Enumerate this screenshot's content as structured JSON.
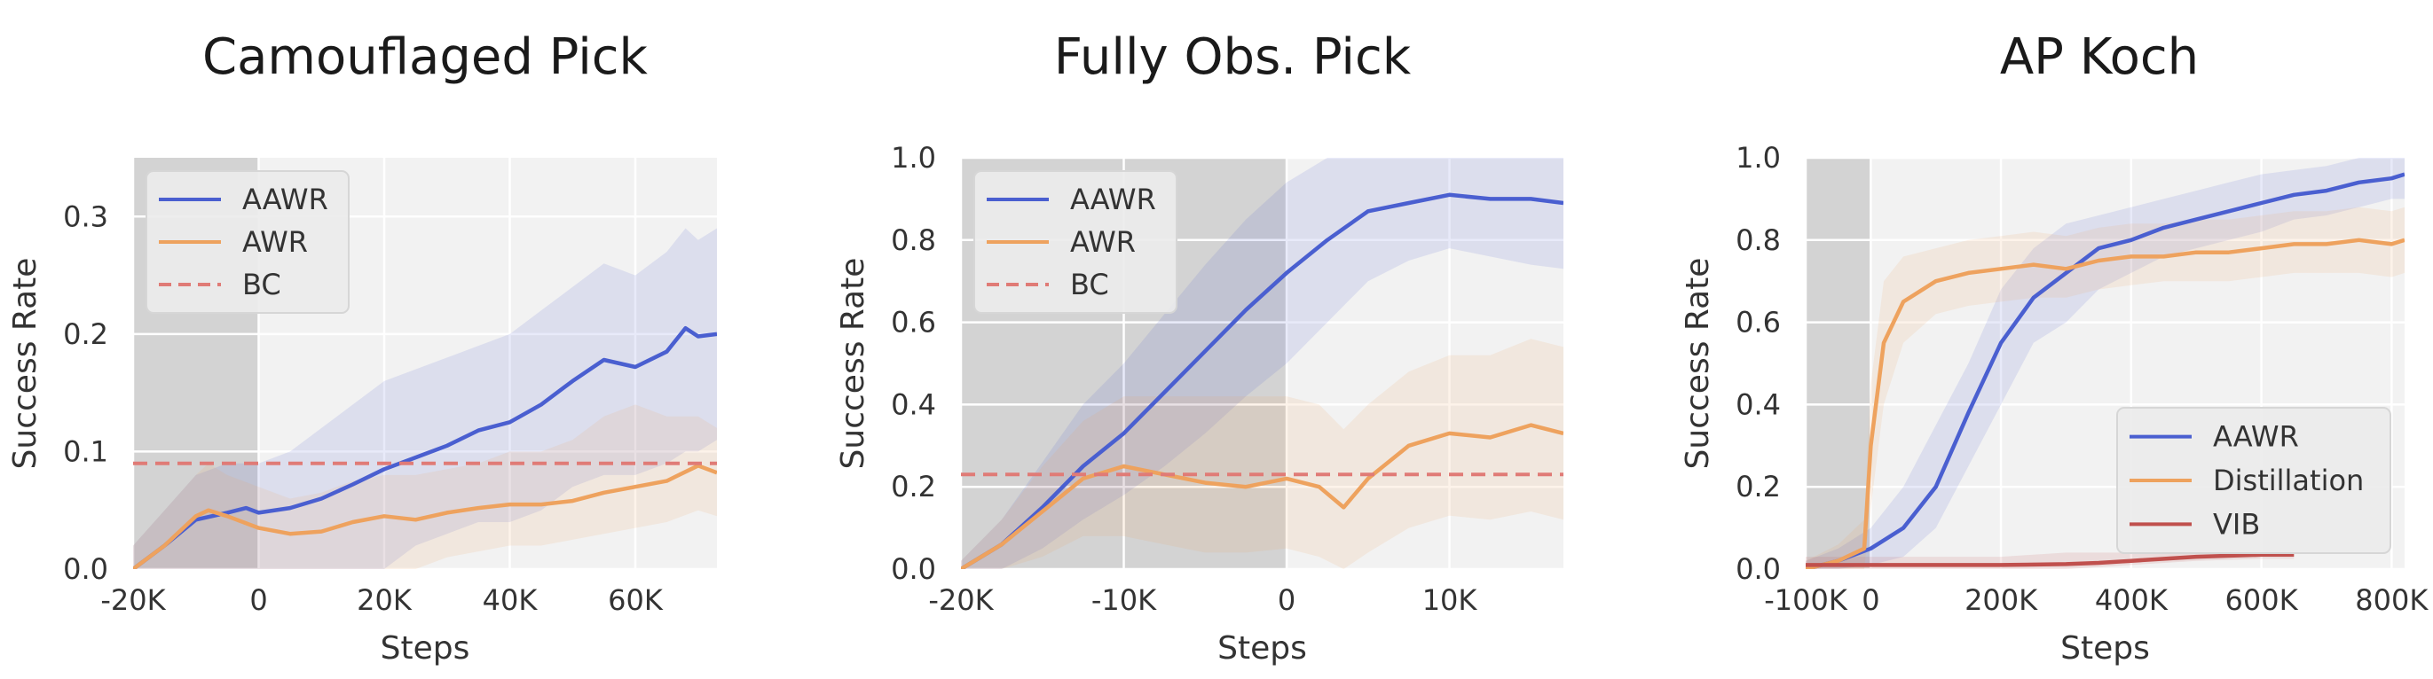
{
  "colors": {
    "AAWR": "#4a5fd0",
    "AWR": "#eea25e",
    "Distillation": "#eea25e",
    "BC": "#e07b76",
    "VIB": "#c0504d"
  },
  "chart_data": [
    {
      "type": "line",
      "title": "Camouflaged Pick",
      "xlabel": "Steps",
      "ylabel": "Success Rate",
      "xlim": [
        -20000,
        73000
      ],
      "ylim": [
        0,
        0.35
      ],
      "shaded_region": [
        -20000,
        0
      ],
      "xticks": [
        -20000,
        0,
        20000,
        40000,
        60000
      ],
      "xtick_labels": [
        "-20K",
        "0",
        "20K",
        "40K",
        "60K"
      ],
      "yticks": [
        0,
        0.1,
        0.2,
        0.3
      ],
      "ytick_labels": [
        "0.0",
        "0.1",
        "0.2",
        "0.3"
      ],
      "grid": true,
      "legend": "top-left",
      "series": [
        {
          "name": "AAWR",
          "style": "solid",
          "color": "#4a5fd0",
          "x": [
            -20000,
            -15000,
            -10000,
            -5000,
            -2000,
            0,
            5000,
            10000,
            15000,
            20000,
            25000,
            30000,
            35000,
            40000,
            45000,
            50000,
            55000,
            60000,
            65000,
            68000,
            70000,
            73000
          ],
          "y": [
            0.0,
            0.02,
            0.042,
            0.048,
            0.052,
            0.048,
            0.052,
            0.06,
            0.072,
            0.085,
            0.095,
            0.105,
            0.118,
            0.125,
            0.14,
            0.16,
            0.178,
            0.172,
            0.185,
            0.205,
            0.198,
            0.2
          ],
          "band_low": [
            0.0,
            0.0,
            0.0,
            0.0,
            0.0,
            0.0,
            0.0,
            0.0,
            0.0,
            0.0,
            0.02,
            0.03,
            0.04,
            0.04,
            0.05,
            0.07,
            0.08,
            0.08,
            0.09,
            0.1,
            0.1,
            0.11
          ],
          "band_high": [
            0.02,
            0.05,
            0.08,
            0.09,
            0.09,
            0.09,
            0.1,
            0.12,
            0.14,
            0.16,
            0.17,
            0.18,
            0.19,
            0.2,
            0.22,
            0.24,
            0.26,
            0.25,
            0.27,
            0.29,
            0.28,
            0.29
          ]
        },
        {
          "name": "AWR",
          "style": "solid",
          "color": "#eea25e",
          "x": [
            -20000,
            -15000,
            -10000,
            -8000,
            -5000,
            0,
            5000,
            10000,
            15000,
            20000,
            25000,
            30000,
            35000,
            40000,
            45000,
            50000,
            55000,
            60000,
            65000,
            70000,
            73000
          ],
          "y": [
            0.0,
            0.02,
            0.045,
            0.05,
            0.045,
            0.035,
            0.03,
            0.032,
            0.04,
            0.045,
            0.042,
            0.048,
            0.052,
            0.055,
            0.055,
            0.058,
            0.065,
            0.07,
            0.075,
            0.088,
            0.082
          ],
          "band_low": [
            0.0,
            0.0,
            0.0,
            0.0,
            0.0,
            0.0,
            0.0,
            0.0,
            0.0,
            0.0,
            0.0,
            0.01,
            0.015,
            0.02,
            0.02,
            0.025,
            0.03,
            0.035,
            0.04,
            0.05,
            0.045
          ],
          "band_high": [
            0.02,
            0.05,
            0.08,
            0.09,
            0.08,
            0.07,
            0.06,
            0.065,
            0.075,
            0.08,
            0.08,
            0.085,
            0.09,
            0.1,
            0.1,
            0.11,
            0.13,
            0.14,
            0.13,
            0.13,
            0.12
          ]
        },
        {
          "name": "BC",
          "style": "dashed",
          "color": "#e07b76",
          "x": [
            -20000,
            73000
          ],
          "y": [
            0.09,
            0.09
          ]
        }
      ]
    },
    {
      "type": "line",
      "title": "Fully Obs. Pick",
      "xlabel": "Steps",
      "ylabel": "Success Rate",
      "xlim": [
        -20000,
        17000
      ],
      "ylim": [
        0,
        1.0
      ],
      "shaded_region": [
        -20000,
        0
      ],
      "xticks": [
        -20000,
        -10000,
        0,
        10000
      ],
      "xtick_labels": [
        "-20K",
        "-10K",
        "0",
        "10K"
      ],
      "yticks": [
        0,
        0.2,
        0.4,
        0.6,
        0.8,
        1.0
      ],
      "ytick_labels": [
        "0.0",
        "0.2",
        "0.4",
        "0.6",
        "0.8",
        "1.0"
      ],
      "grid": true,
      "legend": "top-left",
      "series": [
        {
          "name": "AAWR",
          "style": "solid",
          "color": "#4a5fd0",
          "x": [
            -20000,
            -17500,
            -15000,
            -12500,
            -10000,
            -7500,
            -5000,
            -2500,
            0,
            2500,
            5000,
            7500,
            10000,
            12500,
            15000,
            17000
          ],
          "y": [
            0.0,
            0.06,
            0.15,
            0.25,
            0.33,
            0.43,
            0.53,
            0.63,
            0.72,
            0.8,
            0.87,
            0.89,
            0.91,
            0.9,
            0.9,
            0.89
          ],
          "band_low": [
            0.0,
            0.0,
            0.05,
            0.12,
            0.18,
            0.25,
            0.33,
            0.42,
            0.5,
            0.6,
            0.7,
            0.75,
            0.78,
            0.76,
            0.74,
            0.73
          ],
          "band_high": [
            0.02,
            0.12,
            0.26,
            0.4,
            0.5,
            0.62,
            0.74,
            0.85,
            0.94,
            1.0,
            1.0,
            1.0,
            1.0,
            1.0,
            1.0,
            1.0
          ]
        },
        {
          "name": "AWR",
          "style": "solid",
          "color": "#eea25e",
          "x": [
            -20000,
            -17500,
            -15000,
            -12500,
            -10000,
            -7500,
            -5000,
            -2500,
            0,
            2000,
            3500,
            5000,
            7500,
            10000,
            12500,
            15000,
            17000
          ],
          "y": [
            0.0,
            0.06,
            0.14,
            0.22,
            0.25,
            0.23,
            0.21,
            0.2,
            0.22,
            0.2,
            0.15,
            0.22,
            0.3,
            0.33,
            0.32,
            0.35,
            0.33
          ],
          "band_low": [
            0.0,
            0.0,
            0.03,
            0.08,
            0.08,
            0.06,
            0.04,
            0.04,
            0.05,
            0.03,
            0.0,
            0.04,
            0.1,
            0.13,
            0.12,
            0.14,
            0.12
          ],
          "band_high": [
            0.02,
            0.12,
            0.25,
            0.36,
            0.42,
            0.42,
            0.42,
            0.42,
            0.42,
            0.4,
            0.34,
            0.4,
            0.48,
            0.52,
            0.52,
            0.56,
            0.54
          ]
        },
        {
          "name": "BC",
          "style": "dashed",
          "color": "#e07b76",
          "x": [
            -20000,
            17000
          ],
          "y": [
            0.23,
            0.23
          ]
        }
      ]
    },
    {
      "type": "line",
      "title": "AP Koch",
      "xlabel": "Steps",
      "ylabel": "Success Rate",
      "xlim": [
        -100000,
        820000
      ],
      "ylim": [
        0,
        1.0
      ],
      "shaded_region": [
        -100000,
        0
      ],
      "xticks": [
        -100000,
        0,
        200000,
        400000,
        600000,
        800000
      ],
      "xtick_labels": [
        "-100K",
        "0",
        "200K",
        "400K",
        "600K",
        "800K"
      ],
      "yticks": [
        0,
        0.2,
        0.4,
        0.6,
        0.8,
        1.0
      ],
      "ytick_labels": [
        "0.0",
        "0.2",
        "0.4",
        "0.6",
        "0.8",
        "1.0"
      ],
      "grid": true,
      "legend": "bottom-right",
      "series": [
        {
          "name": "AAWR",
          "style": "solid",
          "color": "#4a5fd0",
          "x": [
            -100000,
            -50000,
            0,
            50000,
            100000,
            150000,
            200000,
            250000,
            300000,
            350000,
            400000,
            450000,
            500000,
            550000,
            600000,
            650000,
            700000,
            750000,
            800000,
            820000
          ],
          "y": [
            0.0,
            0.02,
            0.05,
            0.1,
            0.2,
            0.38,
            0.55,
            0.66,
            0.72,
            0.78,
            0.8,
            0.83,
            0.85,
            0.87,
            0.89,
            0.91,
            0.92,
            0.94,
            0.95,
            0.96
          ],
          "band_low": [
            0.0,
            0.0,
            0.01,
            0.03,
            0.1,
            0.25,
            0.4,
            0.55,
            0.6,
            0.68,
            0.72,
            0.76,
            0.78,
            0.8,
            0.82,
            0.85,
            0.86,
            0.88,
            0.9,
            0.9
          ],
          "band_high": [
            0.02,
            0.05,
            0.1,
            0.2,
            0.35,
            0.5,
            0.68,
            0.78,
            0.84,
            0.86,
            0.88,
            0.9,
            0.92,
            0.94,
            0.96,
            0.97,
            0.98,
            1.0,
            1.0,
            1.0
          ]
        },
        {
          "name": "Distillation",
          "style": "solid",
          "color": "#eea25e",
          "x": [
            -100000,
            -50000,
            -10000,
            0,
            20000,
            50000,
            100000,
            150000,
            200000,
            250000,
            300000,
            350000,
            400000,
            450000,
            500000,
            550000,
            600000,
            650000,
            700000,
            750000,
            800000,
            820000
          ],
          "y": [
            0.0,
            0.02,
            0.05,
            0.3,
            0.55,
            0.65,
            0.7,
            0.72,
            0.73,
            0.74,
            0.73,
            0.75,
            0.76,
            0.76,
            0.77,
            0.77,
            0.78,
            0.79,
            0.79,
            0.8,
            0.79,
            0.8
          ],
          "band_low": [
            0.0,
            0.0,
            0.0,
            0.15,
            0.4,
            0.55,
            0.62,
            0.64,
            0.65,
            0.66,
            0.66,
            0.68,
            0.69,
            0.7,
            0.7,
            0.7,
            0.71,
            0.72,
            0.72,
            0.72,
            0.71,
            0.72
          ],
          "band_high": [
            0.02,
            0.06,
            0.12,
            0.45,
            0.7,
            0.76,
            0.78,
            0.8,
            0.81,
            0.82,
            0.81,
            0.83,
            0.84,
            0.84,
            0.85,
            0.85,
            0.86,
            0.87,
            0.87,
            0.88,
            0.87,
            0.88
          ]
        },
        {
          "name": "VIB",
          "style": "solid",
          "color": "#c0504d",
          "x": [
            -100000,
            0,
            200000,
            300000,
            350000,
            400000,
            500000,
            600000,
            650000
          ],
          "y": [
            0.01,
            0.01,
            0.01,
            0.012,
            0.015,
            0.02,
            0.03,
            0.035,
            0.035
          ],
          "band_low": [
            0.0,
            0.0,
            0.0,
            0.0,
            0.005,
            0.01,
            0.02,
            0.025,
            0.025
          ],
          "band_high": [
            0.03,
            0.03,
            0.03,
            0.04,
            0.04,
            0.04,
            0.045,
            0.045,
            0.045
          ]
        }
      ]
    }
  ]
}
